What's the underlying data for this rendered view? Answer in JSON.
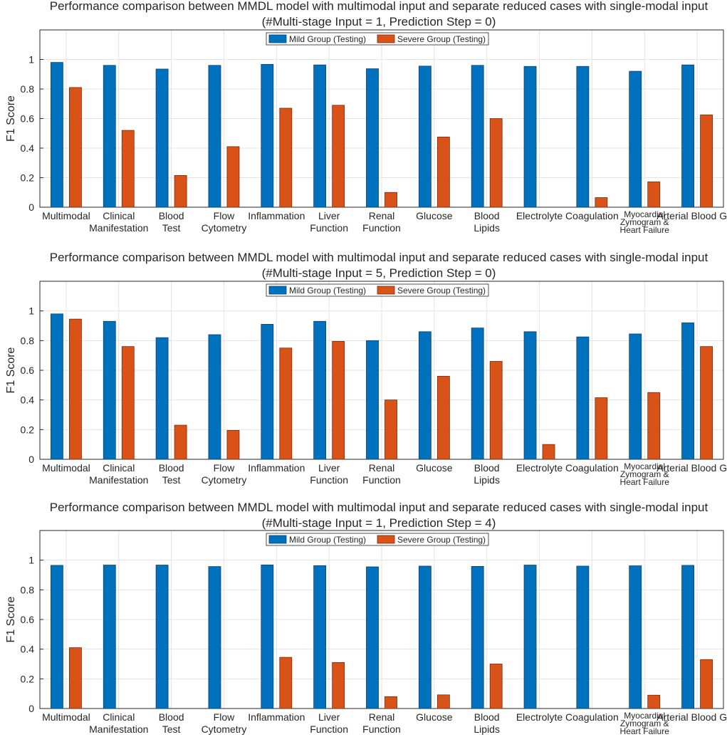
{
  "chart_data": [
    {
      "type": "bar",
      "title": "Performance comparison between MMDL model with multimodal input and separate reduced cases with single-modal input",
      "subtitle": "(#Multi-stage Input = 1,  Prediction Step = 0)",
      "xlabel": "",
      "ylabel": "F1 Score",
      "ylim": [
        0,
        1.2
      ],
      "yticks": [
        "0",
        "0.2",
        "0.4",
        "0.6",
        "0.8",
        "1"
      ],
      "grid": true,
      "legend_position": "top-center",
      "categories": [
        "Multimodal",
        "Clinical Manifestation",
        "Blood Test",
        "Flow Cytometry",
        "Inflammation",
        "Liver Function",
        "Renal Function",
        "Glucose",
        "Blood Lipids",
        "Electrolyte",
        "Coagulation",
        "Myocardial Zymogram & Heart Failure",
        "Arterial Blood Gas"
      ],
      "series": [
        {
          "name": "Mild Group (Testing)",
          "color": "#0072BD",
          "values": [
            0.98,
            0.96,
            0.935,
            0.96,
            0.967,
            0.963,
            0.937,
            0.955,
            0.96,
            0.953,
            0.953,
            0.92,
            0.963
          ]
        },
        {
          "name": "Severe Group (Testing)",
          "color": "#D95319",
          "values": [
            0.81,
            0.52,
            0.215,
            0.41,
            0.67,
            0.69,
            0.1,
            0.475,
            0.6,
            0,
            0.065,
            0.172,
            0.625
          ]
        }
      ]
    },
    {
      "type": "bar",
      "title": "Performance comparison between MMDL model with multimodal input and separate reduced cases with single-modal input",
      "subtitle": "(#Multi-stage Input = 5,  Prediction Step = 0)",
      "xlabel": "",
      "ylabel": "F1 Score",
      "ylim": [
        0,
        1.2
      ],
      "yticks": [
        "0",
        "0.2",
        "0.4",
        "0.6",
        "0.8",
        "1"
      ],
      "grid": true,
      "legend_position": "top-center",
      "categories": [
        "Multimodal",
        "Clinical Manifestation",
        "Blood Test",
        "Flow Cytometry",
        "Inflammation",
        "Liver Function",
        "Renal Function",
        "Glucose",
        "Blood Lipids",
        "Electrolyte",
        "Coagulation",
        "Myocardial Zymogram & Heart Failure",
        "Arterial Blood Gas"
      ],
      "series": [
        {
          "name": "Mild Group (Testing)",
          "color": "#0072BD",
          "values": [
            0.98,
            0.93,
            0.82,
            0.84,
            0.91,
            0.93,
            0.8,
            0.86,
            0.885,
            0.86,
            0.825,
            0.845,
            0.92
          ]
        },
        {
          "name": "Severe Group (Testing)",
          "color": "#D95319",
          "values": [
            0.945,
            0.76,
            0.23,
            0.195,
            0.75,
            0.795,
            0.4,
            0.56,
            0.66,
            0.1,
            0.415,
            0.45,
            0.76
          ]
        }
      ]
    },
    {
      "type": "bar",
      "title": "Performance comparison between MMDL model with multimodal input and separate reduced cases with single-modal input",
      "subtitle": "(#Multi-stage Input = 1,  Prediction Step = 4)",
      "xlabel": "",
      "ylabel": "F1 Score",
      "ylim": [
        0,
        1.2
      ],
      "yticks": [
        "0",
        "0.2",
        "0.4",
        "0.6",
        "0.8",
        "1"
      ],
      "grid": true,
      "legend_position": "top-center",
      "categories": [
        "Multimodal",
        "Clinical Manifestation",
        "Blood Test",
        "Flow Cytometry",
        "Inflammation",
        "Liver Function",
        "Renal Function",
        "Glucose",
        "Blood Lipids",
        "Electrolyte",
        "Coagulation",
        "Myocardial Zymogram & Heart Failure",
        "Arterial Blood Gas"
      ],
      "series": [
        {
          "name": "Mild Group (Testing)",
          "color": "#0072BD",
          "values": [
            0.965,
            0.967,
            0.967,
            0.957,
            0.968,
            0.963,
            0.955,
            0.96,
            0.958,
            0.967,
            0.96,
            0.962,
            0.965
          ]
        },
        {
          "name": "Severe Group (Testing)",
          "color": "#D95319",
          "values": [
            0.41,
            0,
            0,
            0,
            0.345,
            0.31,
            0.08,
            0.092,
            0.3,
            0,
            0,
            0.09,
            0.33
          ]
        }
      ]
    }
  ]
}
